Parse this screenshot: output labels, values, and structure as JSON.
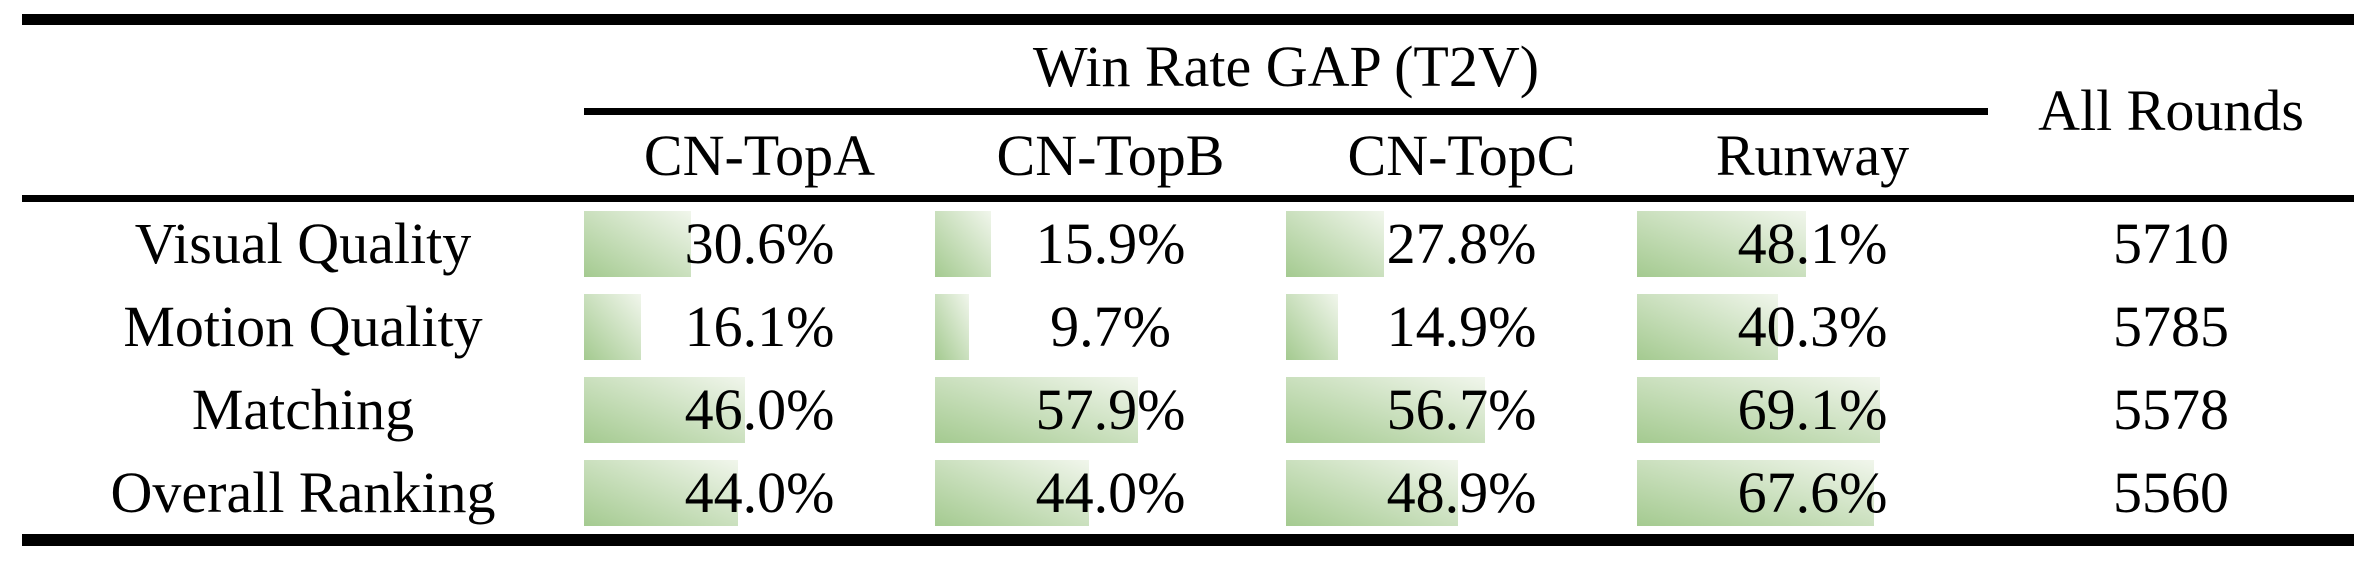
{
  "table": {
    "group_header": "Win Rate GAP (T2V)",
    "all_rounds_header": "All Rounds",
    "columns": [
      "CN-TopA",
      "CN-TopB",
      "CN-TopC",
      "Runway"
    ],
    "rows": [
      {
        "label": "Visual Quality",
        "values": [
          30.6,
          15.9,
          27.8,
          48.1
        ],
        "display": [
          "30.6%",
          "15.9%",
          "27.8%",
          "48.1%"
        ],
        "all_rounds": "5710"
      },
      {
        "label": "Motion Quality",
        "values": [
          16.1,
          9.7,
          14.9,
          40.3
        ],
        "display": [
          "16.1%",
          "9.7%",
          "14.9%",
          "40.3%"
        ],
        "all_rounds": "5785"
      },
      {
        "label": "Matching",
        "values": [
          46.0,
          57.9,
          56.7,
          69.1
        ],
        "display": [
          "46.0%",
          "57.9%",
          "56.7%",
          "69.1%"
        ],
        "all_rounds": "5578"
      },
      {
        "label": "Overall Ranking",
        "values": [
          44.0,
          44.0,
          48.9,
          67.6
        ],
        "display": [
          "44.0%",
          "44.0%",
          "48.9%",
          "67.6%"
        ],
        "all_rounds": "5560"
      }
    ],
    "bar": {
      "gradient_start": "#a4ca90",
      "gradient_end": "#f1f6ec"
    },
    "rule_color": "#000000"
  },
  "chart_data": {
    "type": "table",
    "title": "Win Rate GAP (T2V)",
    "columns": [
      "CN-TopA",
      "CN-TopB",
      "CN-TopC",
      "Runway",
      "All Rounds"
    ],
    "row_labels": [
      "Visual Quality",
      "Motion Quality",
      "Matching",
      "Overall Ranking"
    ],
    "series": [
      {
        "name": "Visual Quality",
        "values": [
          30.6,
          15.9,
          27.8,
          48.1
        ],
        "all_rounds": 5710
      },
      {
        "name": "Motion Quality",
        "values": [
          16.1,
          9.7,
          14.9,
          40.3
        ],
        "all_rounds": 5785
      },
      {
        "name": "Matching",
        "values": [
          46.0,
          57.9,
          56.7,
          69.1
        ],
        "all_rounds": 5578
      },
      {
        "name": "Overall Ranking",
        "values": [
          44.0,
          44.0,
          48.9,
          67.6
        ],
        "all_rounds": 5560
      }
    ],
    "value_unit": "%",
    "bar_scale": "cell width = 100%",
    "bar_color": "#a4ca90"
  }
}
